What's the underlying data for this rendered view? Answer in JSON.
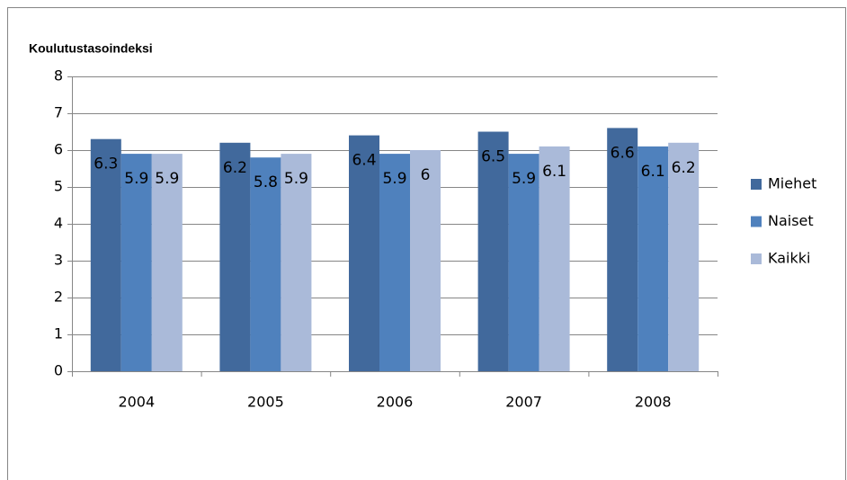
{
  "chart_data": {
    "type": "bar",
    "title": "Koulutustasoindeksi",
    "categories": [
      "2004",
      "2005",
      "2006",
      "2007",
      "2008"
    ],
    "series": [
      {
        "name": "Miehet",
        "color": "#41699c",
        "values": [
          6.3,
          6.2,
          6.4,
          6.5,
          6.6
        ]
      },
      {
        "name": "Naiset",
        "color": "#4f81bd",
        "values": [
          5.9,
          5.8,
          5.9,
          5.9,
          6.1
        ]
      },
      {
        "name": "Kaikki",
        "color": "#aabad9",
        "values": [
          5.9,
          5.9,
          6,
          6.1,
          6.2
        ]
      }
    ],
    "ylim": [
      0,
      8
    ],
    "yticks": [
      0,
      1,
      2,
      3,
      4,
      5,
      6,
      7,
      8
    ],
    "grid": true,
    "legend": "right",
    "data_labels": true
  }
}
